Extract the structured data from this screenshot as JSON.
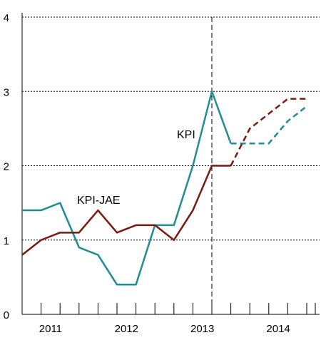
{
  "chart_data": {
    "type": "line",
    "title": "",
    "xlabel": "",
    "ylabel": "",
    "ylim": [
      0,
      4
    ],
    "yticks": [
      "0",
      "1",
      "2",
      "3",
      "4"
    ],
    "grid": "horizontal-dotted",
    "x_periods": [
      "2011 Q1",
      "2011 Q2",
      "2011 Q3",
      "2011 Q4",
      "2012 Q1",
      "2012 Q2",
      "2012 Q3",
      "2012 Q4",
      "2013 Q1",
      "2013 Q2",
      "2013 Q3",
      "2013 Q4",
      "2014 Q1",
      "2014 Q2",
      "2014 Q3",
      "2014 Q4"
    ],
    "year_labels": [
      "2011",
      "2012",
      "2013",
      "2014"
    ],
    "forecast_start": "2013 Q3",
    "series": [
      {
        "name": "KPI",
        "color": "#1f8c96",
        "actual": [
          1.4,
          1.4,
          1.5,
          0.9,
          0.8,
          0.4,
          0.4,
          1.2,
          1.2,
          2.0,
          3.0,
          2.3
        ],
        "forecast": [
          2.3,
          2.3,
          2.3,
          2.6,
          2.8
        ]
      },
      {
        "name": "KPI-JAE",
        "color": "#7a1a10",
        "actual": [
          0.8,
          1.0,
          1.1,
          1.1,
          1.4,
          1.1,
          1.2,
          1.2,
          1.0,
          1.4,
          2.0,
          2.0
        ],
        "forecast": [
          2.0,
          2.5,
          2.7,
          2.9,
          2.9
        ]
      }
    ]
  }
}
